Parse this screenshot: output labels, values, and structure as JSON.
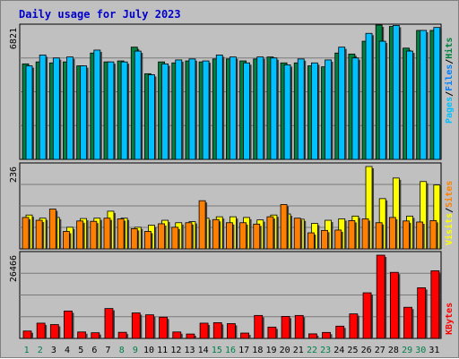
{
  "chart_data": [
    {
      "type": "bar",
      "title": "Daily usage for July 2023",
      "panel": "hits-files-pages",
      "categories": [
        "1",
        "2",
        "3",
        "4",
        "5",
        "6",
        "7",
        "8",
        "9",
        "10",
        "11",
        "12",
        "13",
        "14",
        "15",
        "16",
        "17",
        "18",
        "19",
        "20",
        "21",
        "22",
        "23",
        "24",
        "25",
        "26",
        "27",
        "28",
        "29",
        "30",
        "31"
      ],
      "ymax_label": "6821",
      "ylim": [
        0,
        6821
      ],
      "legend": [
        {
          "name": "Pages",
          "color": "#00c0ff"
        },
        {
          "name": "Files",
          "color": "#0080ff"
        },
        {
          "name": "Hits",
          "color": "#008040"
        }
      ],
      "separator": "/",
      "series": [
        {
          "name": "Hits",
          "color": "#008040",
          "values": [
            4850,
            4950,
            4900,
            4950,
            4750,
            5400,
            4950,
            5000,
            5700,
            4350,
            4950,
            4900,
            5000,
            4950,
            5100,
            5100,
            5000,
            5100,
            5200,
            4900,
            4900,
            4750,
            4700,
            5400,
            5350,
            6000,
            6821,
            6750,
            5650,
            6550,
            6550
          ]
        },
        {
          "name": "Pages",
          "color": "#00c0ff",
          "values": [
            4750,
            5300,
            5150,
            5200,
            4750,
            5550,
            4950,
            4950,
            5500,
            4300,
            4850,
            5050,
            5100,
            5000,
            5300,
            5200,
            4900,
            5200,
            5150,
            4800,
            5100,
            4900,
            5050,
            5700,
            5150,
            6400,
            6000,
            6800,
            5500,
            6550,
            6700
          ]
        }
      ]
    },
    {
      "type": "bar",
      "panel": "visits-sites",
      "categories": [
        "1",
        "2",
        "3",
        "4",
        "5",
        "6",
        "7",
        "8",
        "9",
        "10",
        "11",
        "12",
        "13",
        "14",
        "15",
        "16",
        "17",
        "18",
        "19",
        "20",
        "21",
        "22",
        "23",
        "24",
        "25",
        "26",
        "27",
        "28",
        "29",
        "30",
        "31"
      ],
      "ymax_label": "236",
      "ylim": [
        0,
        236
      ],
      "legend": [
        {
          "name": "Visits",
          "color": "#ffff00"
        },
        {
          "name": "Sites",
          "color": "#ff8000"
        }
      ],
      "separator": "/",
      "series": [
        {
          "name": "Visits",
          "color": "#ffff00",
          "values": [
            97,
            88,
            90,
            62,
            87,
            88,
            108,
            88,
            62,
            68,
            82,
            75,
            78,
            88,
            92,
            92,
            90,
            83,
            97,
            100,
            85,
            73,
            82,
            86,
            94,
            236,
            144,
            203,
            94,
            193,
            183
          ]
        },
        {
          "name": "Sites",
          "color": "#ff8000",
          "values": [
            90,
            82,
            114,
            50,
            80,
            79,
            88,
            86,
            58,
            50,
            72,
            62,
            75,
            138,
            84,
            75,
            75,
            71,
            92,
            127,
            88,
            46,
            53,
            54,
            81,
            86,
            75,
            90,
            80,
            77,
            81
          ]
        }
      ]
    },
    {
      "type": "bar",
      "panel": "kbytes",
      "categories": [
        "1",
        "2",
        "3",
        "4",
        "5",
        "6",
        "7",
        "8",
        "9",
        "10",
        "11",
        "12",
        "13",
        "14",
        "15",
        "16",
        "17",
        "18",
        "19",
        "20",
        "21",
        "22",
        "23",
        "24",
        "25",
        "26",
        "27",
        "28",
        "29",
        "30",
        "31"
      ],
      "weekend_days": [
        "1",
        "2",
        "8",
        "9",
        "15",
        "16",
        "22",
        "23",
        "29",
        "30"
      ],
      "ymax_label": "26466",
      "ylim": [
        0,
        26466
      ],
      "legend": [
        {
          "name": "KBytes",
          "color": "#ff0000"
        }
      ],
      "series": [
        {
          "name": "KBytes",
          "color": "#ff0000",
          "values": [
            2350,
            4850,
            4400,
            8700,
            2050,
            1800,
            9500,
            1950,
            8100,
            7500,
            6750,
            2050,
            1400,
            4850,
            5000,
            4700,
            1700,
            7300,
            3600,
            7000,
            7300,
            1450,
            1900,
            3900,
            7800,
            14500,
            26466,
            21000,
            9900,
            16100,
            21500
          ]
        }
      ]
    }
  ]
}
